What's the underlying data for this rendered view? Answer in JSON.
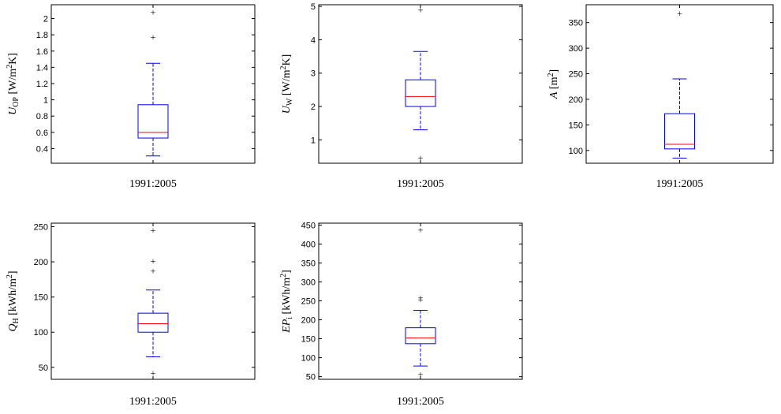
{
  "colors": {
    "box": "#0000ff",
    "median": "#ff0000",
    "outlier": "#ff0000",
    "axes": "#000000"
  },
  "chart_data": [
    {
      "type": "boxplot",
      "category": "1991:2005",
      "ylabel": {
        "sym": "U",
        "sub": "OP",
        "unit_pre": " [W/m",
        "unit_sup": "2",
        "unit_post": "K]"
      },
      "ylim": [
        0.22,
        2.17
      ],
      "yticks": [
        0.4,
        0.6,
        0.8,
        1,
        1.2,
        1.4,
        1.6,
        1.8,
        2
      ],
      "ytick_labels": [
        "0.4",
        "0.6",
        "0.8",
        "1",
        "1.2",
        "1.4",
        "1.6",
        "1.8",
        "2"
      ],
      "stats": {
        "whisker_low": 0.31,
        "q1": 0.53,
        "median": 0.6,
        "q3": 0.94,
        "whisker_high": 1.45
      },
      "outliers": [
        1.77,
        2.08
      ]
    },
    {
      "type": "boxplot",
      "category": "1991:2005",
      "ylabel": {
        "sym": "U",
        "sub": "W",
        "unit_pre": " [W/m",
        "unit_sup": "2",
        "unit_post": "K]"
      },
      "ylim": [
        0.3,
        5.05
      ],
      "yticks": [
        1,
        2,
        3,
        4,
        5
      ],
      "ytick_labels": [
        "1",
        "2",
        "3",
        "4",
        "5"
      ],
      "stats": {
        "whisker_low": 1.3,
        "q1": 2.0,
        "median": 2.3,
        "q3": 2.8,
        "whisker_high": 3.65
      },
      "outliers": [
        0.47,
        4.9
      ]
    },
    {
      "type": "boxplot",
      "category": "1991:2005",
      "ylabel": {
        "sym": "A",
        "sub": "",
        "unit_pre": " [m",
        "unit_sup": "2",
        "unit_post": "]"
      },
      "ylim": [
        75,
        385
      ],
      "yticks": [
        100,
        150,
        200,
        250,
        300,
        350
      ],
      "ytick_labels": [
        "100",
        "150",
        "200",
        "250",
        "300",
        "350"
      ],
      "stats": {
        "whisker_low": 85,
        "q1": 103,
        "median": 112,
        "q3": 172,
        "whisker_high": 240
      },
      "outliers": [
        368
      ]
    },
    {
      "type": "boxplot",
      "category": "1991:2005",
      "ylabel": {
        "sym": "Q",
        "sub": "H",
        "unit_pre": " [kWh/m",
        "unit_sup": "2",
        "unit_post": "]"
      },
      "ylim": [
        33,
        255
      ],
      "yticks": [
        50,
        100,
        150,
        200,
        250
      ],
      "ytick_labels": [
        "50",
        "100",
        "150",
        "200",
        "250"
      ],
      "stats": {
        "whisker_low": 65,
        "q1": 100,
        "median": 112,
        "q3": 127,
        "whisker_high": 160
      },
      "outliers": [
        42,
        187,
        201,
        245
      ]
    },
    {
      "type": "boxplot",
      "category": "1991:2005",
      "ylabel": {
        "sym": "EP",
        "sub": "i",
        "unit_pre": " [kWh/m",
        "unit_sup": "2",
        "unit_post": "]"
      },
      "ylim": [
        43,
        455
      ],
      "yticks": [
        50,
        100,
        150,
        200,
        250,
        300,
        350,
        400,
        450
      ],
      "ytick_labels": [
        "50",
        "100",
        "150",
        "200",
        "250",
        "300",
        "350",
        "400",
        "450"
      ],
      "stats": {
        "whisker_low": 78,
        "q1": 137,
        "median": 152,
        "q3": 179,
        "whisker_high": 225
      },
      "outliers": [
        57,
        253,
        258,
        437
      ]
    }
  ]
}
